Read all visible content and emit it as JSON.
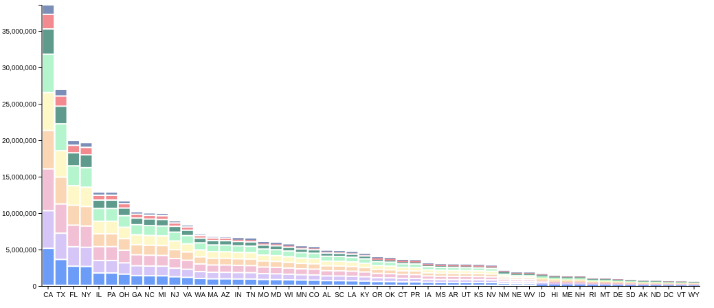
{
  "chart_data": {
    "type": "bar",
    "stacked": true,
    "title": "",
    "xlabel": "",
    "ylabel": "",
    "ylim": [
      0,
      38500000
    ],
    "y_ticks": [
      0,
      5000000,
      10000000,
      15000000,
      20000000,
      25000000,
      30000000,
      35000000
    ],
    "y_tick_labels": [
      "0",
      "5,000,000",
      "10,000,000",
      "15,000,000",
      "20,000,000",
      "25,000,000",
      "30,000,000",
      "35,000,000"
    ],
    "grid": false,
    "legend": "none",
    "colors": [
      "#6b9cf8",
      "#d6c6f7",
      "#f2c0d4",
      "#fad6b4",
      "#fef8c8",
      "#b5f5cd",
      "#5f9b8d",
      "#f28a8f",
      "#7b8eb8"
    ],
    "categories": [
      "CA",
      "TX",
      "FL",
      "NY",
      "IL",
      "PA",
      "OH",
      "GA",
      "NC",
      "MI",
      "NJ",
      "VA",
      "WA",
      "MA",
      "AZ",
      "IN",
      "TN",
      "MO",
      "MD",
      "WI",
      "MN",
      "CO",
      "AL",
      "SC",
      "LA",
      "KY",
      "OR",
      "OK",
      "CT",
      "PR",
      "IA",
      "MS",
      "AR",
      "UT",
      "KS",
      "NV",
      "NM",
      "NE",
      "WV",
      "ID",
      "HI",
      "ME",
      "NH",
      "RI",
      "MT",
      "DE",
      "SD",
      "AK",
      "ND",
      "DC",
      "VT",
      "WY"
    ],
    "totals": [
      38500000,
      26900000,
      19900000,
      19600000,
      12800000,
      12800000,
      11600000,
      10100000,
      9950000,
      9880000,
      8860000,
      8280000,
      7070000,
      6720000,
      6700000,
      6580000,
      6520000,
      6040000,
      5930000,
      5710000,
      5450000,
      5340000,
      4840000,
      4800000,
      4670000,
      4410000,
      3950000,
      3850000,
      3590000,
      3550000,
      3100000,
      2990000,
      2960000,
      2940000,
      2900000,
      2800000,
      2090000,
      1870000,
      1850000,
      1630000,
      1410000,
      1330000,
      1320000,
      1050000,
      1020000,
      930000,
      850000,
      740000,
      720000,
      650000,
      630000,
      580000
    ],
    "series_shares": [
      0.132,
      0.134,
      0.149,
      0.137,
      0.135,
      0.137,
      0.09,
      0.052,
      0.034
    ],
    "series": []
  }
}
